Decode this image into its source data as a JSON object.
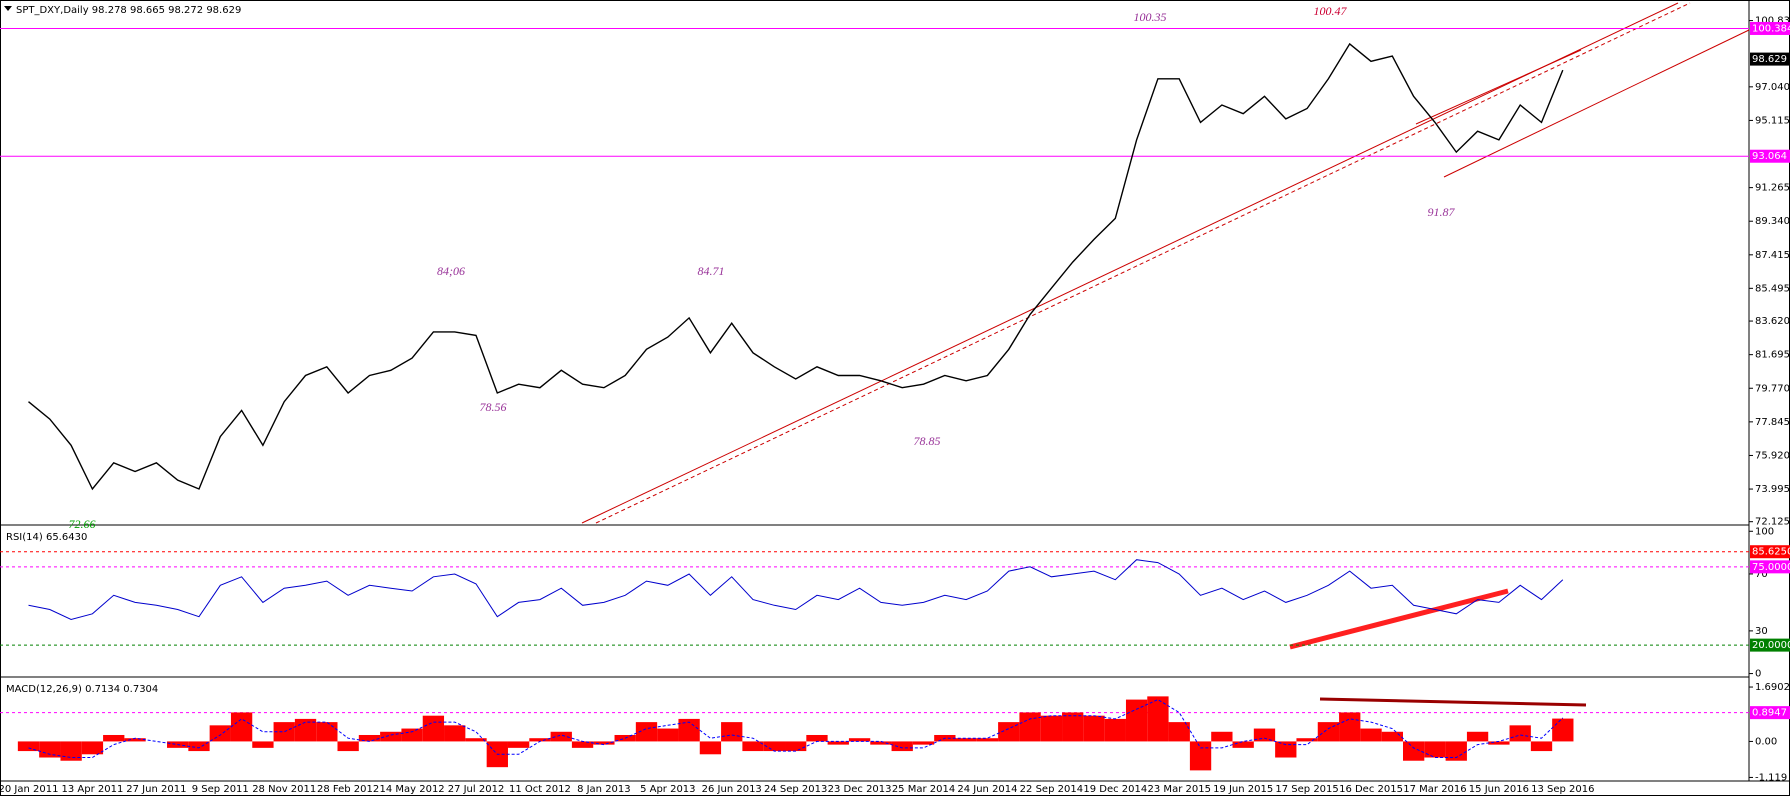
{
  "chart_data": [
    {
      "type": "line",
      "title": "SPT_DXY,Daily  98.278 98.665 98.272 98.629",
      "categories": [
        "20 Jan 2011",
        null,
        null,
        "13 Apr 2011",
        null,
        null,
        "27 Jun 2011",
        null,
        null,
        "9 Sep 2011",
        null,
        null,
        "28 Nov 2011",
        null,
        null,
        "28 Feb 2012",
        null,
        null,
        "14 May 2012",
        null,
        null,
        "27 Jul 2012",
        null,
        null,
        "11 Oct 2012",
        null,
        null,
        "8 Jan 2013",
        null,
        null,
        "5 Apr 2013",
        null,
        null,
        "26 Jun 2013",
        null,
        null,
        "24 Sep 2013",
        null,
        null,
        "23 Dec 2013",
        null,
        null,
        "25 Mar 2014",
        null,
        null,
        "24 Jun 2014",
        null,
        null,
        "22 Sep 2014",
        null,
        null,
        "19 Dec 2014",
        null,
        null,
        "23 Mar 2015",
        null,
        null,
        "19 Jun 2015",
        null,
        null,
        "17 Sep 2015",
        null,
        null,
        "16 Dec 2015",
        null,
        null,
        "17 Mar 2016",
        null,
        null,
        "15 Jun 2016",
        null,
        null,
        "13 Sep 2016"
      ],
      "series": [
        {
          "color": "#000000",
          "values": [
            79.0,
            78.0,
            76.5,
            74.0,
            75.5,
            75.0,
            75.5,
            74.5,
            74.0,
            77.0,
            78.5,
            76.5,
            79.0,
            80.5,
            81.0,
            79.5,
            80.5,
            80.8,
            81.5,
            83.0,
            83.0,
            82.8,
            79.5,
            80.0,
            79.8,
            80.8,
            80.0,
            79.8,
            80.5,
            82.0,
            82.7,
            83.8,
            81.8,
            83.5,
            81.8,
            81.0,
            80.3,
            81.0,
            80.5,
            80.5,
            80.2,
            79.8,
            80.0,
            80.5,
            80.2,
            80.5,
            82.0,
            84.0,
            85.5,
            87.0,
            88.3,
            89.5,
            94.0,
            97.5,
            97.5,
            95.0,
            96.0,
            95.5,
            96.5,
            95.2,
            95.8,
            97.5,
            99.5,
            98.5,
            98.8,
            96.5,
            95.0,
            93.3,
            94.5,
            94.0,
            96.0,
            95.0,
            98.0
          ]
        }
      ],
      "ylim": [
        72.05,
        101.9
      ],
      "yticks": [
        100.835,
        {
          "value": 97.04,
          "label": "97.040"
        },
        95.115,
        91.265,
        {
          "value": 89.34,
          "label": "89.340"
        },
        87.415,
        85.495,
        {
          "value": 83.62,
          "label": "83.620"
        },
        81.695,
        {
          "value": 79.77,
          "label": "79.770"
        },
        77.845,
        {
          "value": 75.92,
          "label": "75.920"
        },
        73.995,
        72.125
      ],
      "hlines": [
        {
          "value": 100.384,
          "color": "#ff00ff"
        },
        {
          "value": 93.064,
          "color": "#ff00ff"
        }
      ],
      "price_box": 98.629,
      "annotations": [
        {
          "text": "72.66",
          "color": "#00a000"
        },
        {
          "text": "84;06",
          "color": "#993399"
        },
        {
          "text": "84.71",
          "color": "#993399"
        },
        {
          "text": "78.56",
          "color": "#993399"
        },
        {
          "text": "78.85",
          "color": "#993399"
        },
        {
          "text": "100.35",
          "color": "#993399"
        },
        {
          "text": "100.47",
          "color": "#cc0033"
        },
        {
          "text": "91.87",
          "color": "#993399"
        }
      ]
    },
    {
      "type": "line",
      "title": "RSI(14) 65.6430",
      "color": "#0000cc",
      "values": [
        48,
        45,
        38,
        42,
        55,
        50,
        48,
        45,
        40,
        62,
        68,
        50,
        60,
        62,
        65,
        55,
        62,
        60,
        58,
        68,
        70,
        63,
        40,
        50,
        52,
        60,
        48,
        50,
        55,
        65,
        62,
        70,
        55,
        68,
        52,
        48,
        45,
        55,
        52,
        60,
        50,
        48,
        50,
        55,
        52,
        58,
        72,
        75,
        68,
        70,
        72,
        66,
        80,
        78,
        70,
        55,
        60,
        52,
        58,
        50,
        55,
        62,
        72,
        60,
        62,
        48,
        45,
        42,
        52,
        50,
        62,
        52,
        66
      ],
      "ylim": [
        -1,
        103
      ],
      "yticks": [
        100,
        70,
        30,
        0
      ],
      "levels": [
        {
          "value": 85.625,
          "label": "85.6250",
          "color": "#ff0000"
        },
        {
          "value": 75,
          "label": "75.0000",
          "color": "#ff00ff"
        },
        {
          "value": 20,
          "label": "20.0000",
          "color": "#008000"
        }
      ]
    },
    {
      "type": "bar",
      "title": "MACD(12,26,9) 0.7134 0.7304",
      "series": [
        {
          "color": "#ff0000",
          "values": [
            -0.3,
            -0.5,
            -0.6,
            -0.4,
            0.2,
            0.1,
            0.0,
            -0.2,
            -0.3,
            0.5,
            0.9,
            -0.2,
            0.6,
            0.7,
            0.6,
            -0.3,
            0.2,
            0.3,
            0.4,
            0.8,
            0.5,
            0.1,
            -0.8,
            -0.2,
            0.1,
            0.3,
            -0.2,
            -0.1,
            0.2,
            0.6,
            0.4,
            0.7,
            -0.4,
            0.6,
            -0.3,
            -0.3,
            -0.3,
            0.2,
            -0.1,
            0.1,
            -0.1,
            -0.3,
            -0.1,
            0.2,
            0.1,
            0.1,
            0.6,
            0.9,
            0.8,
            0.9,
            0.8,
            0.7,
            1.3,
            1.4,
            0.6,
            -0.9,
            0.3,
            -0.2,
            0.4,
            -0.5,
            0.1,
            0.6,
            0.9,
            0.4,
            0.3,
            -0.6,
            -0.5,
            -0.6,
            0.3,
            -0.1,
            0.5,
            -0.3,
            0.71
          ]
        },
        {
          "color": "#0000ff",
          "values": [
            -0.2,
            -0.4,
            -0.5,
            -0.5,
            -0.1,
            0.1,
            0.0,
            -0.1,
            -0.2,
            0.2,
            0.7,
            0.3,
            0.3,
            0.6,
            0.6,
            0.1,
            0.0,
            0.2,
            0.3,
            0.6,
            0.6,
            0.3,
            -0.4,
            -0.4,
            0.0,
            0.2,
            0.0,
            -0.1,
            0.1,
            0.4,
            0.5,
            0.6,
            0.1,
            0.2,
            0.1,
            -0.3,
            -0.3,
            0.0,
            0.0,
            0.0,
            0.0,
            -0.2,
            -0.2,
            0.1,
            0.1,
            0.1,
            0.4,
            0.7,
            0.8,
            0.8,
            0.8,
            0.7,
            1.0,
            1.3,
            0.9,
            -0.2,
            -0.2,
            0.0,
            0.1,
            -0.1,
            -0.1,
            0.4,
            0.7,
            0.6,
            0.4,
            -0.2,
            -0.5,
            -0.5,
            -0.1,
            0.0,
            0.2,
            0.1,
            0.73
          ]
        }
      ],
      "ylim": [
        -1.23,
        1.94
      ],
      "yticks": [
        1.6902,
        {
          "value": 0,
          "label": "0.00"
        },
        -1.119
      ],
      "levels": [
        {
          "value": 0.8947,
          "color": "#ff00ff"
        }
      ]
    }
  ]
}
